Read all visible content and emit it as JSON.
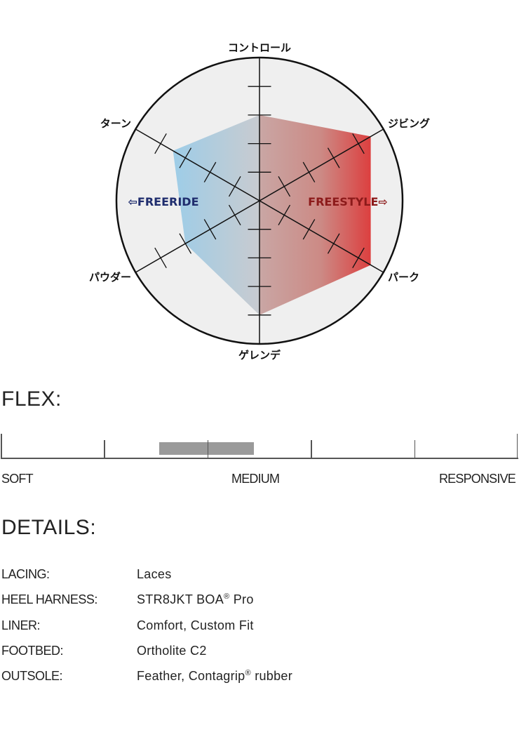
{
  "chart_data": {
    "type": "radar",
    "axes": [
      "コントロール",
      "ジビング",
      "パーク",
      "ゲレンデ",
      "パウダー",
      "ターン"
    ],
    "values": [
      3,
      4.5,
      4.5,
      4,
      3,
      3.5
    ],
    "range": [
      0,
      5
    ],
    "ticks": [
      1,
      2,
      3,
      4
    ],
    "left_label": "⇦FREERIDE",
    "right_label": "FREESTYLE⇨",
    "colors": {
      "freeride": "#1f2d6e",
      "freestyle": "#8c1a1a",
      "fill_left": "#9dcde8",
      "fill_mid": "#c8cbd0",
      "fill_right": "#dc4040",
      "background": "#efefef"
    }
  },
  "flex": {
    "title": "FLEX:",
    "labels": {
      "soft": "SOFT",
      "medium": "MEDIUM",
      "responsive": "RESPONSIVE"
    },
    "segments": 5,
    "range_fraction": [
      0.306,
      0.49
    ],
    "bar_color": "#9a9a9a"
  },
  "details": {
    "title": "DETAILS:",
    "rows": [
      {
        "label": "LACING:",
        "value": "Laces"
      },
      {
        "label": "HEEL HARNESS:",
        "value": "STR8JKT BOA",
        "sup": "®",
        "value_after": " Pro"
      },
      {
        "label": "LINER:",
        "value": "Comfort, Custom Fit"
      },
      {
        "label": "FOOTBED:",
        "value": "Ortholite C2"
      },
      {
        "label": "OUTSOLE:",
        "value": "Feather, Contagrip",
        "sup": "®",
        "value_after": " rubber"
      }
    ]
  }
}
